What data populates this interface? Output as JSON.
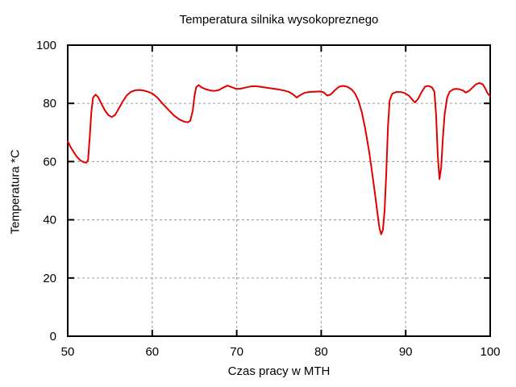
{
  "chart_data": {
    "type": "line",
    "title": "Temperatura silnika wysokopreznego",
    "xlabel": "Czas pracy w MTH",
    "ylabel": "Temperatura *C",
    "xlim": [
      50,
      100
    ],
    "ylim": [
      0,
      100
    ],
    "xticks": [
      50,
      60,
      70,
      80,
      90,
      100
    ],
    "yticks": [
      0,
      20,
      40,
      60,
      80,
      100
    ],
    "grid": true,
    "legend": "none",
    "line_color": "#e10000",
    "grid_color": "#a8a8a8",
    "axis_color": "#000000",
    "background": "#ffffff",
    "series": [
      {
        "points": [
          [
            50.0,
            67.0
          ],
          [
            50.3,
            65.2
          ],
          [
            50.7,
            63.3
          ],
          [
            51.1,
            61.6
          ],
          [
            51.5,
            60.4
          ],
          [
            51.9,
            59.8
          ],
          [
            52.2,
            59.6
          ],
          [
            52.4,
            60.5
          ],
          [
            52.6,
            68.0
          ],
          [
            52.8,
            77.0
          ],
          [
            53.0,
            82.0
          ],
          [
            53.3,
            83.0
          ],
          [
            53.6,
            82.2
          ],
          [
            54.0,
            79.8
          ],
          [
            54.4,
            77.6
          ],
          [
            54.8,
            76.0
          ],
          [
            55.2,
            75.3
          ],
          [
            55.6,
            76.0
          ],
          [
            56.0,
            78.0
          ],
          [
            56.5,
            80.6
          ],
          [
            57.0,
            82.8
          ],
          [
            57.5,
            84.0
          ],
          [
            58.0,
            84.5
          ],
          [
            58.5,
            84.6
          ],
          [
            59.0,
            84.4
          ],
          [
            59.5,
            84.0
          ],
          [
            60.0,
            83.4
          ],
          [
            60.6,
            82.0
          ],
          [
            61.2,
            80.0
          ],
          [
            62.0,
            77.5
          ],
          [
            62.6,
            75.8
          ],
          [
            63.2,
            74.5
          ],
          [
            63.8,
            73.7
          ],
          [
            64.2,
            73.5
          ],
          [
            64.5,
            74.0
          ],
          [
            64.8,
            77.5
          ],
          [
            65.0,
            82.5
          ],
          [
            65.2,
            85.5
          ],
          [
            65.5,
            86.3
          ],
          [
            65.9,
            85.4
          ],
          [
            66.4,
            84.8
          ],
          [
            66.9,
            84.4
          ],
          [
            67.4,
            84.3
          ],
          [
            67.9,
            84.6
          ],
          [
            68.4,
            85.4
          ],
          [
            68.9,
            86.1
          ],
          [
            69.4,
            85.6
          ],
          [
            69.9,
            85.0
          ],
          [
            70.4,
            85.0
          ],
          [
            71.0,
            85.4
          ],
          [
            71.6,
            85.8
          ],
          [
            72.2,
            85.9
          ],
          [
            72.8,
            85.7
          ],
          [
            73.5,
            85.4
          ],
          [
            74.2,
            85.1
          ],
          [
            74.9,
            84.8
          ],
          [
            75.6,
            84.4
          ],
          [
            76.2,
            83.9
          ],
          [
            76.7,
            83.0
          ],
          [
            77.1,
            82.0
          ],
          [
            77.5,
            82.8
          ],
          [
            78.0,
            83.6
          ],
          [
            78.6,
            83.9
          ],
          [
            79.2,
            84.0
          ],
          [
            79.8,
            84.1
          ],
          [
            80.3,
            83.8
          ],
          [
            80.7,
            82.7
          ],
          [
            81.1,
            83.0
          ],
          [
            81.6,
            84.5
          ],
          [
            82.1,
            85.7
          ],
          [
            82.6,
            86.0
          ],
          [
            83.1,
            85.7
          ],
          [
            83.6,
            84.8
          ],
          [
            84.0,
            83.4
          ],
          [
            84.4,
            81.0
          ],
          [
            84.8,
            77.0
          ],
          [
            85.2,
            71.5
          ],
          [
            85.7,
            63.0
          ],
          [
            86.2,
            52.5
          ],
          [
            86.6,
            43.5
          ],
          [
            86.9,
            37.0
          ],
          [
            87.1,
            35.0
          ],
          [
            87.3,
            36.5
          ],
          [
            87.5,
            43.0
          ],
          [
            87.7,
            56.0
          ],
          [
            87.9,
            72.0
          ],
          [
            88.1,
            81.0
          ],
          [
            88.4,
            83.3
          ],
          [
            88.9,
            83.9
          ],
          [
            89.4,
            83.9
          ],
          [
            89.9,
            83.5
          ],
          [
            90.4,
            82.6
          ],
          [
            90.8,
            81.2
          ],
          [
            91.1,
            80.3
          ],
          [
            91.5,
            81.7
          ],
          [
            91.9,
            84.0
          ],
          [
            92.3,
            85.8
          ],
          [
            92.7,
            86.0
          ],
          [
            93.1,
            85.5
          ],
          [
            93.4,
            84.0
          ],
          [
            93.6,
            76.0
          ],
          [
            93.8,
            62.0
          ],
          [
            94.0,
            54.0
          ],
          [
            94.2,
            58.0
          ],
          [
            94.4,
            68.0
          ],
          [
            94.6,
            76.0
          ],
          [
            94.9,
            82.0
          ],
          [
            95.2,
            84.0
          ],
          [
            95.6,
            84.8
          ],
          [
            96.0,
            85.0
          ],
          [
            96.4,
            84.8
          ],
          [
            96.8,
            84.4
          ],
          [
            97.1,
            83.7
          ],
          [
            97.5,
            84.3
          ],
          [
            97.9,
            85.4
          ],
          [
            98.3,
            86.5
          ],
          [
            98.7,
            87.0
          ],
          [
            99.1,
            86.6
          ],
          [
            99.4,
            85.2
          ],
          [
            99.7,
            83.4
          ],
          [
            100.0,
            82.4
          ]
        ]
      }
    ]
  }
}
